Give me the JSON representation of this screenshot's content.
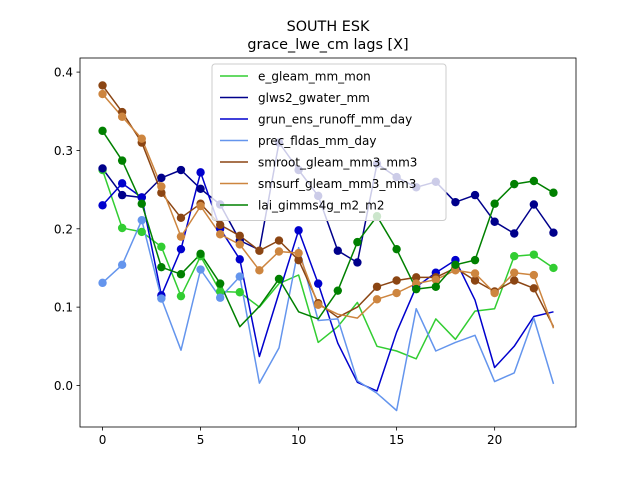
{
  "chart_data": {
    "type": "line",
    "title": "SOUTH ESK",
    "subtitle": "grace_lwe_cm lags [X]",
    "xlabel": "",
    "ylabel": "",
    "xlim": [
      -1.15,
      24.15
    ],
    "ylim": [
      -0.053,
      0.418
    ],
    "xticks": [
      0,
      5,
      10,
      15,
      20
    ],
    "yticks": [
      0.0,
      0.1,
      0.2,
      0.3,
      0.4
    ],
    "ytick_labels": [
      "0.0",
      "0.1",
      "0.2",
      "0.3",
      "0.4"
    ],
    "grid": false,
    "legend_position": "upper center",
    "x": [
      0,
      1,
      2,
      3,
      4,
      5,
      6,
      7,
      8,
      9,
      10,
      11,
      12,
      13,
      14,
      15,
      16,
      17,
      18,
      19,
      20,
      21,
      22,
      23
    ],
    "series": [
      {
        "name": "e_gleam_mm_mon",
        "color": "#32cd32",
        "values": [
          0.275,
          0.201,
          0.196,
          0.177,
          0.114,
          0.165,
          0.12,
          0.119,
          0.1,
          0.13,
          0.141,
          0.055,
          0.075,
          0.106,
          0.05,
          0.044,
          0.034,
          0.085,
          0.059,
          0.095,
          0.098,
          0.165,
          0.167,
          0.15
        ],
        "markers": [
          0,
          1,
          2,
          3,
          4,
          5,
          6,
          7,
          21,
          22,
          23
        ]
      },
      {
        "name": "glws2_gwater_mm",
        "color": "#00008b",
        "values": [
          0.277,
          0.243,
          0.24,
          0.265,
          0.275,
          0.251,
          0.231,
          0.185,
          0.173,
          0.31,
          0.275,
          0.242,
          0.172,
          0.157,
          0.283,
          0.266,
          0.253,
          0.26,
          0.234,
          0.243,
          0.209,
          0.194,
          0.231,
          0.195
        ],
        "markers": [
          0,
          1,
          2,
          3,
          4,
          5,
          6,
          7,
          9,
          10,
          11,
          12,
          13,
          14,
          15,
          16,
          17,
          18,
          19,
          20,
          21,
          22,
          23
        ]
      },
      {
        "name": "grun_ens_runoff_mm_day",
        "color": "#0000cd",
        "values": [
          0.23,
          0.258,
          0.24,
          0.115,
          0.174,
          0.272,
          0.2,
          0.161,
          0.037,
          0.118,
          0.198,
          0.13,
          0.054,
          0.004,
          -0.007,
          0.068,
          0.126,
          0.144,
          0.16,
          0.109,
          0.023,
          0.05,
          0.088,
          0.094
        ],
        "markers": [
          0,
          1,
          2,
          3,
          4,
          5,
          6,
          7,
          10,
          11,
          16,
          17,
          18
        ]
      },
      {
        "name": "prec_fldas_mm_day",
        "color": "#6495ed",
        "values": [
          0.131,
          0.154,
          0.211,
          0.111,
          0.045,
          0.148,
          0.112,
          0.139,
          0.003,
          0.048,
          0.176,
          0.083,
          0.085,
          0.006,
          -0.01,
          -0.032,
          0.098,
          0.044,
          0.055,
          0.064,
          0.005,
          0.016,
          0.086,
          0.002
        ],
        "markers": [
          0,
          1,
          2,
          3,
          5,
          6,
          7
        ]
      },
      {
        "name": "smroot_gleam_mm3_mm3",
        "color": "#8b4513",
        "values": [
          0.383,
          0.349,
          0.31,
          0.246,
          0.214,
          0.232,
          0.205,
          0.191,
          0.172,
          0.185,
          0.16,
          0.105,
          0.087,
          0.1,
          0.126,
          0.134,
          0.138,
          0.138,
          0.15,
          0.134,
          0.12,
          0.134,
          0.124,
          0.075
        ],
        "markers": [
          0,
          1,
          2,
          3,
          4,
          5,
          6,
          7,
          8,
          9,
          10,
          11,
          14,
          15,
          16,
          17,
          18,
          19,
          20,
          21,
          22
        ]
      },
      {
        "name": "smsurf_gleam_mm3_mm3",
        "color": "#cd853f",
        "values": [
          0.372,
          0.343,
          0.315,
          0.254,
          0.19,
          0.229,
          0.193,
          0.18,
          0.147,
          0.171,
          0.169,
          0.103,
          0.091,
          0.086,
          0.11,
          0.118,
          0.13,
          0.135,
          0.147,
          0.143,
          0.118,
          0.144,
          0.141,
          0.073
        ],
        "markers": [
          0,
          1,
          2,
          3,
          4,
          5,
          6,
          7,
          8,
          9,
          10,
          11,
          14,
          15,
          16,
          17,
          18,
          19,
          20,
          21,
          22
        ]
      },
      {
        "name": "lai_gimms4g_m2_m2",
        "color": "#008000",
        "values": [
          0.325,
          0.287,
          0.232,
          0.151,
          0.142,
          0.168,
          0.13,
          0.075,
          0.101,
          0.136,
          0.094,
          0.085,
          0.121,
          0.183,
          0.216,
          0.174,
          0.123,
          0.126,
          0.154,
          0.16,
          0.232,
          0.257,
          0.261,
          0.246
        ],
        "markers": [
          0,
          1,
          2,
          3,
          4,
          5,
          6,
          9,
          12,
          13,
          14,
          15,
          16,
          17,
          18,
          19,
          20,
          21,
          22,
          23
        ]
      }
    ]
  }
}
